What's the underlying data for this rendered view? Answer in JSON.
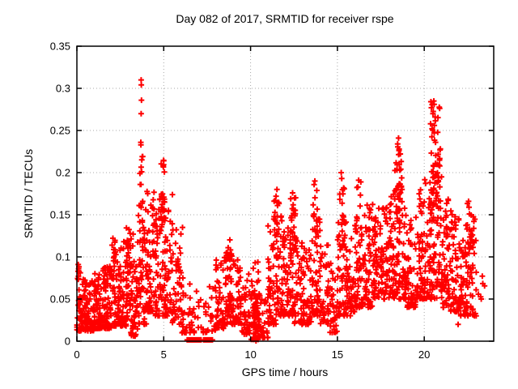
{
  "chart_data": {
    "type": "scatter",
    "title": "Day 082 of 2017, SRMTID for receiver rspe",
    "xlabel": "GPS time / hours",
    "ylabel": "SRMTID / TECUs",
    "xlim": [
      0,
      24
    ],
    "ylim": [
      0,
      0.35
    ],
    "x_ticks": [
      0,
      5,
      10,
      15,
      20
    ],
    "x_tick_labels": [
      "0",
      "5",
      "10",
      "15",
      "20"
    ],
    "y_ticks": [
      0,
      0.05,
      0.1,
      0.15,
      0.2,
      0.25,
      0.3,
      0.35
    ],
    "y_tick_labels": [
      "0",
      "0.05",
      "0.1",
      "0.15",
      "0.2",
      "0.25",
      "0.3",
      "0.35"
    ],
    "grid": true,
    "legend": "none",
    "marker": "plus",
    "marker_color": "#ff0000",
    "grid_color": "#a8a8a8",
    "border_color": "#000000",
    "seed": 20170082,
    "base_bins": {
      "bin_hours": 0.5,
      "skew_exponent": 1.8,
      "entries": [
        [
          60,
          0.012,
          0.075
        ],
        [
          65,
          0.012,
          0.072
        ],
        [
          65,
          0.015,
          0.08
        ],
        [
          65,
          0.015,
          0.09
        ],
        [
          60,
          0.018,
          0.11
        ],
        [
          60,
          0.018,
          0.12
        ],
        [
          65,
          0.006,
          0.13
        ],
        [
          55,
          0.02,
          0.165
        ],
        [
          60,
          0.035,
          0.18
        ],
        [
          60,
          0.03,
          0.175
        ],
        [
          55,
          0.03,
          0.175
        ],
        [
          42,
          0.02,
          0.135
        ],
        [
          26,
          0.01,
          0.08
        ],
        [
          16,
          0.01,
          0.06
        ],
        [
          14,
          0.01,
          0.05
        ],
        [
          16,
          0.012,
          0.07
        ],
        [
          48,
          0.015,
          0.1
        ],
        [
          52,
          0.02,
          0.115
        ],
        [
          46,
          0.02,
          0.1
        ],
        [
          40,
          0.008,
          0.085
        ],
        [
          46,
          0.002,
          0.1
        ],
        [
          26,
          0.004,
          0.055
        ],
        [
          50,
          0.02,
          0.14
        ],
        [
          55,
          0.03,
          0.155
        ],
        [
          55,
          0.03,
          0.15
        ],
        [
          46,
          0.02,
          0.125
        ],
        [
          46,
          0.02,
          0.115
        ],
        [
          50,
          0.03,
          0.15
        ],
        [
          46,
          0.02,
          0.115
        ],
        [
          36,
          0.01,
          0.095
        ],
        [
          50,
          0.03,
          0.15
        ],
        [
          46,
          0.03,
          0.125
        ],
        [
          50,
          0.04,
          0.15
        ],
        [
          55,
          0.04,
          0.165
        ],
        [
          55,
          0.05,
          0.175
        ],
        [
          52,
          0.05,
          0.16
        ],
        [
          55,
          0.05,
          0.185
        ],
        [
          55,
          0.05,
          0.19
        ],
        [
          50,
          0.04,
          0.15
        ],
        [
          55,
          0.05,
          0.185
        ],
        [
          55,
          0.05,
          0.2
        ],
        [
          60,
          0.05,
          0.22
        ],
        [
          55,
          0.04,
          0.17
        ],
        [
          55,
          0.035,
          0.155
        ],
        [
          50,
          0.03,
          0.14
        ],
        [
          46,
          0.03,
          0.15
        ],
        [
          6,
          0.05,
          0.1
        ],
        [
          0,
          0,
          0
        ]
      ]
    },
    "clusters": [
      [
        0.05,
        0.2,
        0.07,
        0.092,
        6
      ],
      [
        2.0,
        2.2,
        0.07,
        0.125,
        10
      ],
      [
        2.85,
        3.1,
        0.08,
        0.135,
        14
      ],
      [
        3.63,
        3.82,
        0.16,
        0.24,
        10
      ],
      [
        4.82,
        5.05,
        0.14,
        0.215,
        18
      ],
      [
        8.6,
        8.9,
        0.07,
        0.125,
        14
      ],
      [
        10.15,
        10.5,
        0.0,
        0.06,
        45
      ],
      [
        11.3,
        11.65,
        0.1,
        0.18,
        22
      ],
      [
        12.3,
        12.6,
        0.1,
        0.175,
        18
      ],
      [
        13.6,
        13.85,
        0.11,
        0.19,
        14
      ],
      [
        15.1,
        15.4,
        0.11,
        0.2,
        16
      ],
      [
        16.1,
        16.4,
        0.11,
        0.19,
        12
      ],
      [
        18.3,
        18.75,
        0.14,
        0.24,
        30
      ],
      [
        20.3,
        20.95,
        0.14,
        0.285,
        48
      ],
      [
        22.35,
        22.85,
        0.1,
        0.17,
        10
      ]
    ],
    "zero_runs": [
      [
        6.35,
        7.15
      ],
      [
        7.3,
        7.8
      ]
    ],
    "outliers": [
      [
        3.7,
        0.31
      ],
      [
        3.71,
        0.304
      ],
      [
        3.72,
        0.286
      ],
      [
        3.7,
        0.27
      ],
      [
        3.68,
        0.236
      ],
      [
        3.73,
        0.201
      ],
      [
        3.69,
        0.186
      ],
      [
        5.0,
        0.214
      ],
      [
        4.97,
        0.208
      ],
      [
        6.08,
        0.135
      ],
      [
        0.08,
        0.091
      ],
      [
        0.1,
        0.086
      ],
      [
        0.09,
        0.077
      ],
      [
        11.52,
        0.18
      ],
      [
        11.47,
        0.172
      ],
      [
        12.42,
        0.176
      ],
      [
        13.7,
        0.19
      ],
      [
        15.22,
        0.2
      ],
      [
        15.25,
        0.193
      ],
      [
        16.22,
        0.191
      ],
      [
        16.18,
        0.183
      ],
      [
        18.52,
        0.241
      ],
      [
        18.47,
        0.234
      ],
      [
        18.55,
        0.228
      ],
      [
        20.55,
        0.285
      ],
      [
        20.5,
        0.27
      ],
      [
        20.62,
        0.266
      ],
      [
        20.58,
        0.256
      ],
      [
        20.45,
        0.252
      ],
      [
        21.95,
        0.02
      ],
      [
        22.1,
        0.032
      ],
      [
        22.55,
        0.166
      ],
      [
        22.6,
        0.151
      ]
    ]
  }
}
